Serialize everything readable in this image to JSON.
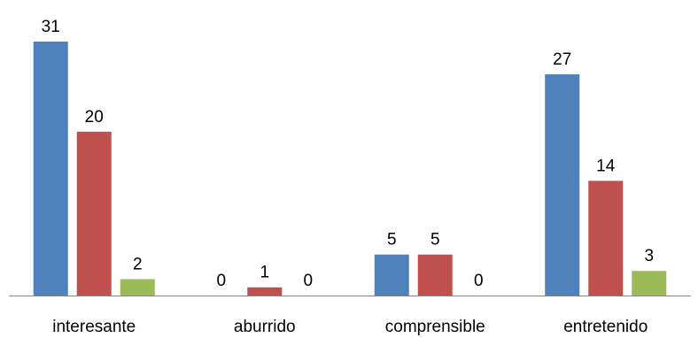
{
  "chart_data": {
    "type": "bar",
    "categories": [
      "interesante",
      "aburrido",
      "comprensible",
      "entretenido"
    ],
    "series": [
      {
        "color": "#4F81BD",
        "values": [
          31,
          0,
          5,
          27
        ]
      },
      {
        "color": "#C0504D",
        "values": [
          20,
          1,
          5,
          14
        ]
      },
      {
        "color": "#9BBB59",
        "values": [
          2,
          0,
          0,
          3
        ]
      }
    ],
    "ylim": [
      0,
      31
    ],
    "grid": false,
    "legend": "none",
    "data_labels": true,
    "axis_color": "#868686"
  }
}
